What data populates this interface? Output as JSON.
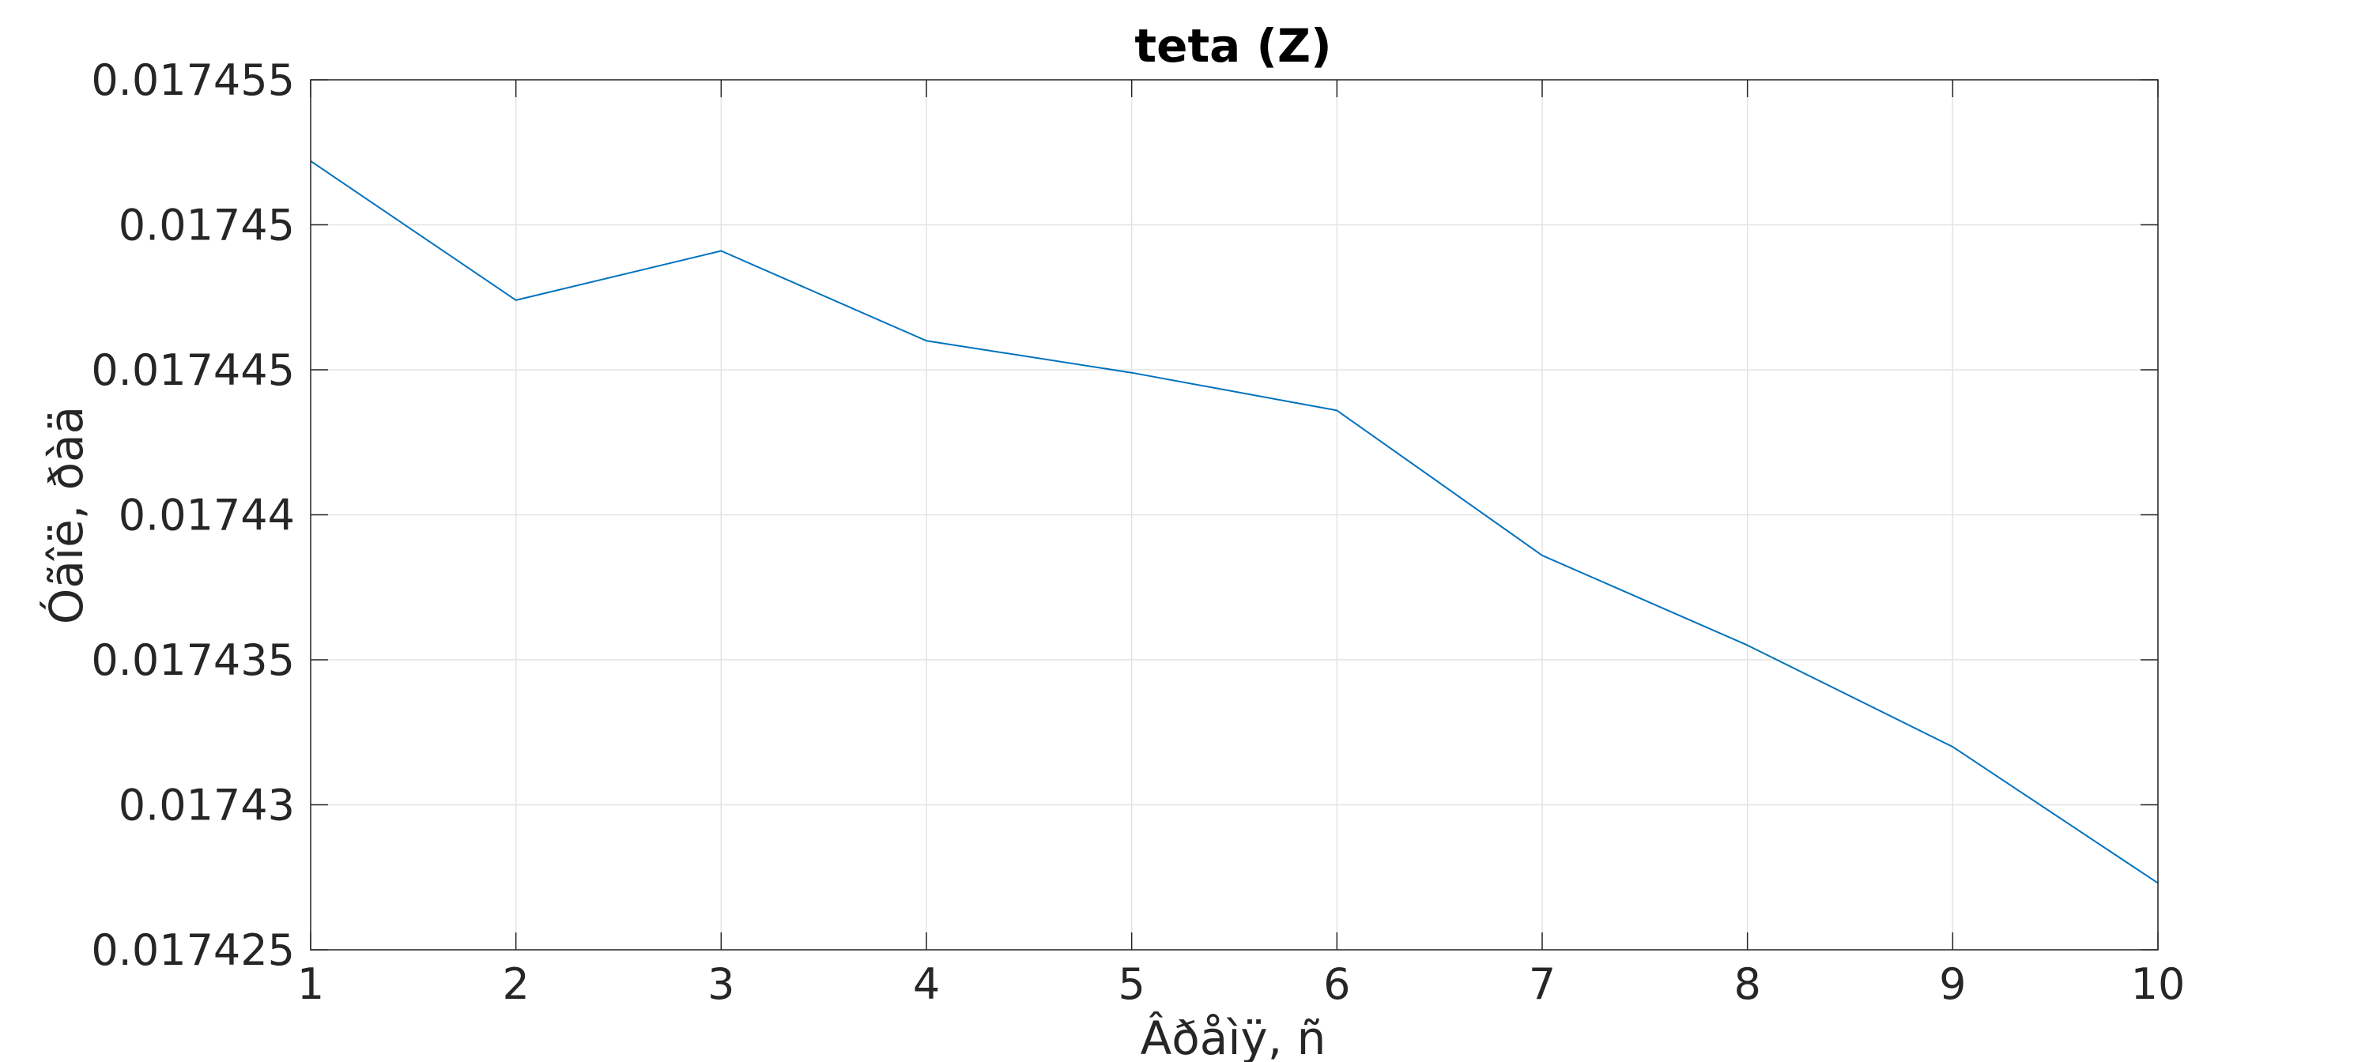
{
  "chart_data": {
    "type": "line",
    "title": "teta (Z)",
    "xlabel": "Âðåìÿ, ñ",
    "ylabel": "Óãîë, ðàä",
    "xlim": [
      1,
      10
    ],
    "ylim": [
      0.017425,
      0.017455
    ],
    "xticks": [
      1,
      2,
      3,
      4,
      5,
      6,
      7,
      8,
      9,
      10
    ],
    "xtick_labels": [
      "1",
      "2",
      "3",
      "4",
      "5",
      "6",
      "7",
      "8",
      "9",
      "10"
    ],
    "yticks": [
      0.017425,
      0.01743,
      0.017435,
      0.01744,
      0.017445,
      0.01745,
      0.017455
    ],
    "ytick_labels": [
      "0.017425",
      "0.01743",
      "0.017435",
      "0.01744",
      "0.017445",
      "0.01745",
      "0.017455"
    ],
    "grid": true,
    "series": [
      {
        "color": "#0072BD",
        "x": [
          1,
          2,
          3,
          4,
          5,
          6,
          7,
          8,
          9,
          10
        ],
        "values": [
          0.0174522,
          0.0174474,
          0.0174491,
          0.017446,
          0.0174449,
          0.0174436,
          0.0174386,
          0.0174355,
          0.017432,
          0.0174273
        ]
      }
    ]
  }
}
